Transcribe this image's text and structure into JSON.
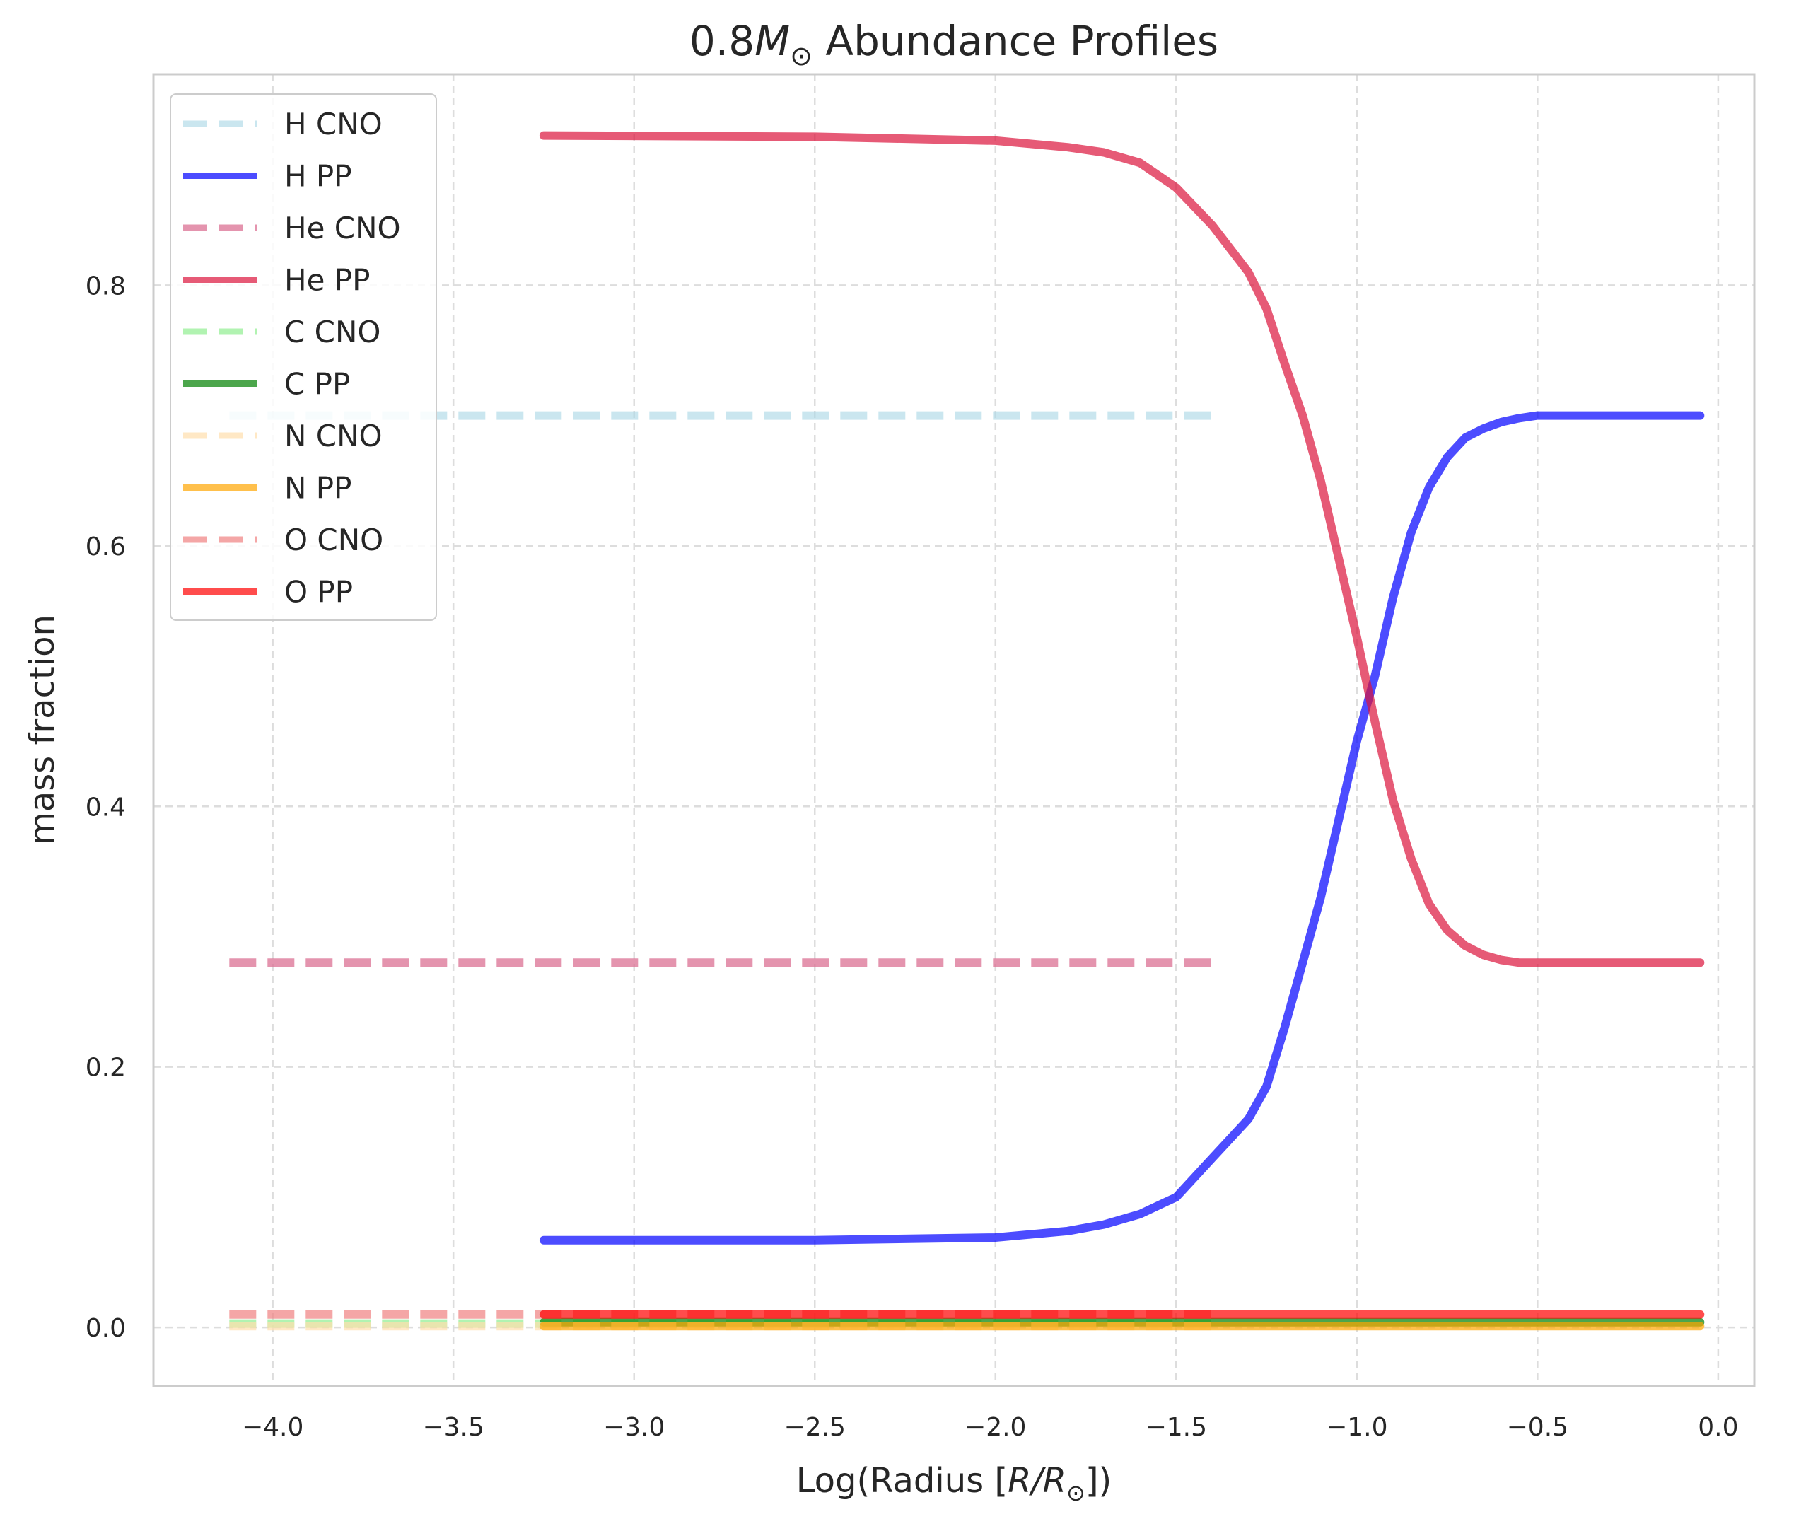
{
  "chart_data": {
    "type": "line",
    "title_prefix": "0.8",
    "title_symbol": "M",
    "title_subscript": "⊙",
    "title_suffix": " Abundance Profiles",
    "xlabel_prefix": "Log(Radius [",
    "xlabel_math": "R/R",
    "xlabel_subscript": "⊙",
    "xlabel_suffix": "])",
    "ylabel": "mass fraction",
    "xlim": [
      -4.33,
      0.1
    ],
    "ylim": [
      -0.045,
      0.962
    ],
    "xticks": [
      -4.0,
      -3.5,
      -3.0,
      -2.5,
      -2.0,
      -1.5,
      -1.0,
      -0.5,
      0.0
    ],
    "xtick_labels": [
      "−4.0",
      "−3.5",
      "−3.0",
      "−2.5",
      "−2.0",
      "−1.5",
      "−1.0",
      "−0.5",
      "0.0"
    ],
    "yticks": [
      0.0,
      0.2,
      0.4,
      0.6,
      0.8
    ],
    "ytick_labels": [
      "0.0",
      "0.2",
      "0.4",
      "0.6",
      "0.8"
    ],
    "grid": true,
    "legend_position": "upper-left",
    "series": [
      {
        "name": "H CNO",
        "color": "#add8e6",
        "dashed": true,
        "alpha": 0.65,
        "x": [
          -4.12,
          -1.38
        ],
        "y": [
          0.7,
          0.7
        ]
      },
      {
        "name": "H PP",
        "color": "#0000ff",
        "dashed": false,
        "alpha": 0.7,
        "x": [
          -3.25,
          -2.5,
          -2.0,
          -1.8,
          -1.7,
          -1.6,
          -1.5,
          -1.4,
          -1.3,
          -1.25,
          -1.2,
          -1.15,
          -1.1,
          -1.05,
          -1.0,
          -0.95,
          -0.9,
          -0.85,
          -0.8,
          -0.75,
          -0.7,
          -0.65,
          -0.6,
          -0.55,
          -0.5,
          -0.4,
          -0.2,
          -0.05
        ],
        "y": [
          0.067,
          0.067,
          0.069,
          0.074,
          0.079,
          0.087,
          0.1,
          0.13,
          0.16,
          0.185,
          0.23,
          0.28,
          0.33,
          0.39,
          0.45,
          0.5,
          0.56,
          0.61,
          0.645,
          0.668,
          0.683,
          0.69,
          0.695,
          0.698,
          0.7,
          0.7,
          0.7,
          0.7
        ]
      },
      {
        "name": "He CNO",
        "color": "#db7093",
        "dashed": true,
        "alpha": 0.75,
        "x": [
          -4.12,
          -1.38
        ],
        "y": [
          0.28,
          0.28
        ]
      },
      {
        "name": "He PP",
        "color": "#dc143c",
        "dashed": false,
        "alpha": 0.7,
        "x": [
          -3.25,
          -2.5,
          -2.0,
          -1.8,
          -1.7,
          -1.6,
          -1.5,
          -1.4,
          -1.3,
          -1.25,
          -1.2,
          -1.15,
          -1.1,
          -1.05,
          -1.0,
          -0.95,
          -0.9,
          -0.85,
          -0.8,
          -0.75,
          -0.7,
          -0.65,
          -0.6,
          -0.55,
          -0.5,
          -0.4,
          -0.2,
          -0.05
        ],
        "y": [
          0.915,
          0.914,
          0.911,
          0.906,
          0.902,
          0.894,
          0.875,
          0.846,
          0.81,
          0.782,
          0.74,
          0.7,
          0.65,
          0.59,
          0.53,
          0.465,
          0.405,
          0.36,
          0.325,
          0.305,
          0.293,
          0.286,
          0.282,
          0.28,
          0.28,
          0.28,
          0.28,
          0.28
        ]
      },
      {
        "name": "C CNO",
        "color": "#90ee90",
        "dashed": true,
        "alpha": 0.7,
        "x": [
          -4.12,
          -1.38
        ],
        "y": [
          0.003,
          0.003
        ]
      },
      {
        "name": "C PP",
        "color": "#008000",
        "dashed": false,
        "alpha": 0.7,
        "x": [
          -3.25,
          -0.05
        ],
        "y": [
          0.004,
          0.004
        ]
      },
      {
        "name": "N CNO",
        "color": "#ffdead",
        "dashed": true,
        "alpha": 0.7,
        "x": [
          -4.12,
          -1.38
        ],
        "y": [
          0.001,
          0.001
        ]
      },
      {
        "name": "N PP",
        "color": "#ffa500",
        "dashed": false,
        "alpha": 0.7,
        "x": [
          -3.25,
          -0.05
        ],
        "y": [
          0.001,
          0.001
        ]
      },
      {
        "name": "O CNO",
        "color": "#f08080",
        "dashed": true,
        "alpha": 0.7,
        "x": [
          -4.12,
          -1.38
        ],
        "y": [
          0.01,
          0.01
        ]
      },
      {
        "name": "O PP",
        "color": "#ff0000",
        "dashed": false,
        "alpha": 0.7,
        "x": [
          -3.25,
          -0.05
        ],
        "y": [
          0.01,
          0.01
        ]
      }
    ]
  }
}
